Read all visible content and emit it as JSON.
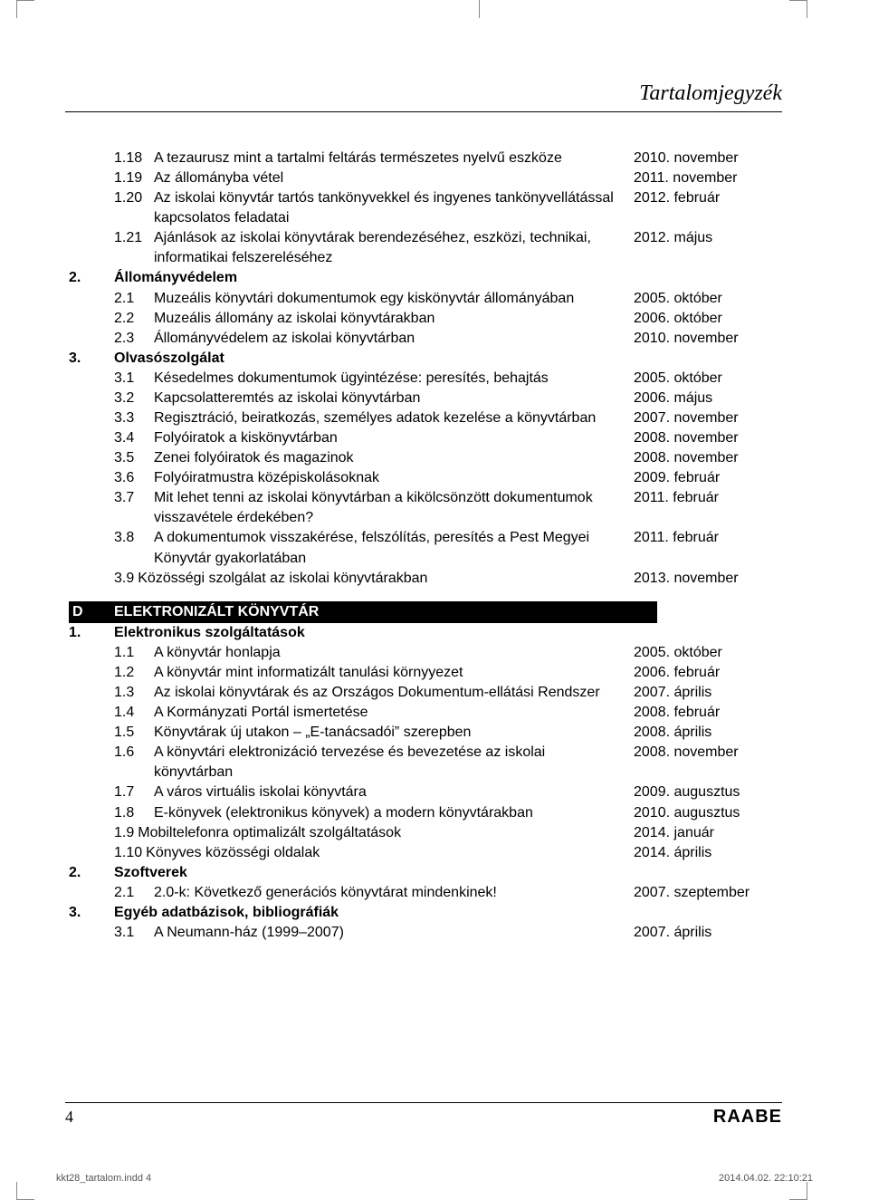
{
  "header": "Tartalomjegyzék",
  "page_number": "4",
  "logo": "RAABE",
  "slug_left": "kkt28_tartalom.indd   4",
  "slug_right": "2014.04.02.   22:10:21",
  "sections": [
    {
      "num": "",
      "title": "",
      "items": [
        {
          "num": "1.18",
          "text": "A tezaurusz mint a tartalmi feltárás természetes nyelvű eszköze",
          "date": "2010. november"
        },
        {
          "num": "1.19",
          "text": "Az állományba vétel",
          "date": "2011. november"
        },
        {
          "num": "1.20",
          "text": "Az iskolai könyvtár tartós tankönyvekkel és ingyenes tankönyvellátással kapcsolatos feladatai",
          "date": "2012. február"
        },
        {
          "num": "1.21",
          "text": "Ajánlások az iskolai könyvtárak berendezéséhez, eszközi, technikai, informatikai felszereléséhez",
          "date": "2012. május"
        }
      ]
    },
    {
      "num": "2.",
      "title": "Állományvédelem",
      "items": [
        {
          "num": "2.1",
          "text": "Muzeális könyvtári dokumentumok egy kiskönyvtár állományában",
          "date": "2005. október"
        },
        {
          "num": "2.2",
          "text": "Muzeális állomány az iskolai könyvtárakban",
          "date": "2006. október"
        },
        {
          "num": "2.3",
          "text": "Állományvédelem az iskolai könyvtárban",
          "date": "2010. november"
        }
      ]
    },
    {
      "num": "3.",
      "title": "Olvasószolgálat",
      "items": [
        {
          "num": "3.1",
          "text": "Késedelmes dokumentumok ügyintézése: peresítés, behajtás",
          "date": "2005. október",
          "inline_date": true
        },
        {
          "num": "3.2",
          "text": "Kapcsolatteremtés az iskolai könyvtárban",
          "date": "2006. május"
        },
        {
          "num": "3.3",
          "text": "Regisztráció, beiratkozás, személyes adatok kezelése a könyvtárban",
          "date": "2007. november"
        },
        {
          "num": "3.4",
          "text": "Folyóiratok a kiskönyvtárban",
          "date": "2008. november"
        },
        {
          "num": "3.5",
          "text": "Zenei folyóiratok és magazinok",
          "date": "2008. november"
        },
        {
          "num": "3.6",
          "text": "Folyóiratmustra középiskolásoknak",
          "date": "2009. február"
        },
        {
          "num": "3.7",
          "text": "Mit lehet tenni az iskolai könyvtárban a kikölcsönzött dokumentumok visszavétele érdekében?",
          "date": "2011. február"
        },
        {
          "num": "3.8",
          "text": "A dokumentumok visszakérése, felszólítás, peresítés a Pest Megyei Könyvtár gyakorlatában",
          "date": "2011. február"
        },
        {
          "num": "3.9",
          "text": "Közösségi szolgálat az iskolai könyvtárakban",
          "date": "2013. november",
          "no_gap": true
        }
      ]
    }
  ],
  "black_bar": {
    "letter": "D",
    "title": "ELEKTRONIZÁLT KÖNYVTÁR"
  },
  "sections2": [
    {
      "num": "1.",
      "title": "Elektronikus szolgáltatások",
      "items": [
        {
          "num": "1.1",
          "text": "A könyvtár honlapja",
          "date": "2005. október"
        },
        {
          "num": "1.2",
          "text": "A könyvtár mint informatizált tanulási környyezet",
          "date": "2006. február"
        },
        {
          "num": "1.3",
          "text": "Az iskolai könyvtárak és az Országos Dokumentum-ellátási Rendszer",
          "date": "2007. április"
        },
        {
          "num": "1.4",
          "text": "A Kormányzati Portál ismertetése",
          "date": "2008. február"
        },
        {
          "num": "1.5",
          "text": "Könyvtárak új utakon – „E-tanácsadói” szerepben",
          "date": "2008. április"
        },
        {
          "num": "1.6",
          "text": "A könyvtári elektronizáció tervezése és bevezetése az iskolai könyvtárban",
          "date": "2008. november"
        },
        {
          "num": "1.7",
          "text": "A város virtuális iskolai könyvtára",
          "date": "2009. augusztus"
        },
        {
          "num": "1.8",
          "text": "E-könyvek (elektronikus könyvek) a modern könyvtárakban",
          "date": "2010. augusztus"
        },
        {
          "num": "1.9",
          "text": "Mobiltelefonra optimalizált szolgáltatások",
          "date": "2014. január",
          "no_gap": true
        },
        {
          "num": "1.10",
          "text": "Könyves közösségi oldalak",
          "date": "2014. április",
          "no_gap": true
        }
      ]
    },
    {
      "num": "2.",
      "title": "Szoftverek",
      "items": [
        {
          "num": "2.1",
          "text": "2.0-k: Következő generációs könyvtárat mindenkinek!",
          "date": "2007. szeptember"
        }
      ]
    },
    {
      "num": "3.",
      "title": "Egyéb adatbázisok, bibliográfiák",
      "items": [
        {
          "num": "3.1",
          "text": "A Neumann-ház (1999–2007)",
          "date": "2007. április"
        }
      ]
    }
  ]
}
